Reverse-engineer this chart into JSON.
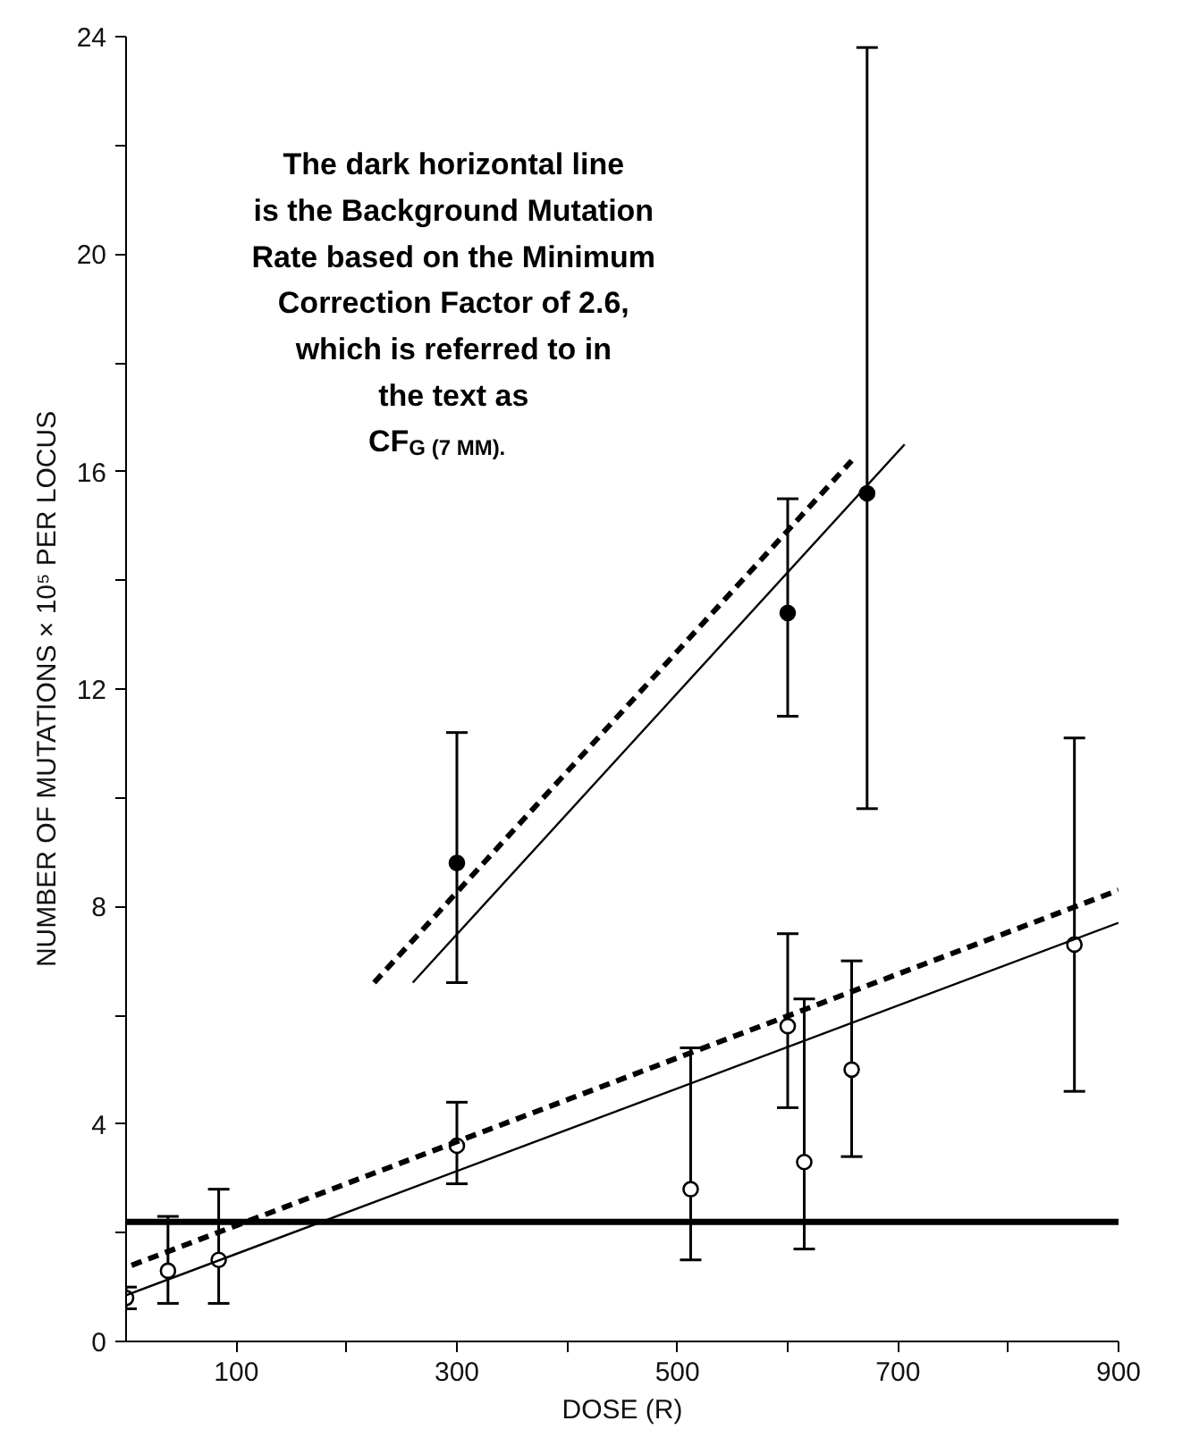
{
  "chart_data": {
    "type": "scatter",
    "xlabel": "DOSE (R)",
    "ylabel": "NUMBER OF MUTATIONS × 10⁵ PER LOCUS",
    "xlim": [
      0,
      900
    ],
    "ylim": [
      0,
      24
    ],
    "xticks": [
      100,
      {
        "value": 200,
        "label": null
      },
      300,
      {
        "value": 400,
        "label": null
      },
      500,
      {
        "value": 600,
        "label": null
      },
      700,
      {
        "value": 800,
        "label": null
      },
      900
    ],
    "yticks": [
      0,
      {
        "value": 2,
        "label": null
      },
      4,
      {
        "value": 6,
        "label": null
      },
      8,
      {
        "value": 10,
        "label": null
      },
      12,
      {
        "value": 14,
        "label": null
      },
      16,
      {
        "value": 18,
        "label": null
      },
      20,
      {
        "value": 22,
        "label": null
      },
      24
    ],
    "grid": false,
    "series": [
      {
        "marker": "circle",
        "color": "#ffffff",
        "x": [
          0,
          38,
          84,
          300,
          512,
          600,
          615,
          658,
          860
        ],
        "values": [
          0.8,
          1.3,
          1.5,
          3.6,
          2.8,
          5.8,
          3.3,
          5.0,
          7.3
        ],
        "errors": [
          [
            0.6,
            1.0
          ],
          [
            0.7,
            2.3
          ],
          [
            0.7,
            2.8
          ],
          [
            2.9,
            4.4
          ],
          [
            1.5,
            5.4
          ],
          [
            4.3,
            7.5
          ],
          [
            1.7,
            6.3
          ],
          [
            3.4,
            7.0
          ],
          [
            4.6,
            11.1
          ]
        ]
      },
      {
        "marker": "circle",
        "color": "#000000",
        "x": [
          300,
          600,
          672
        ],
        "values": [
          8.8,
          13.4,
          15.6
        ],
        "errors": [
          [
            6.6,
            11.2
          ],
          [
            11.5,
            15.5
          ],
          [
            9.8,
            23.8
          ]
        ]
      },
      {
        "type": "line",
        "color": "#000000",
        "line_style": "solid",
        "x": [
          0,
          900
        ],
        "values": [
          0.85,
          7.7
        ]
      },
      {
        "type": "line",
        "color": "#000000",
        "line_style": "dashed",
        "x": [
          5,
          900
        ],
        "values": [
          1.4,
          8.3
        ]
      },
      {
        "type": "line",
        "color": "#000000",
        "line_style": "solid",
        "x": [
          260,
          706
        ],
        "values": [
          6.6,
          16.5
        ]
      },
      {
        "type": "line",
        "color": "#000000",
        "line_style": "dashed",
        "x": [
          225,
          658
        ],
        "values": [
          6.6,
          16.2
        ]
      }
    ],
    "ref_lines": [
      {
        "axis": "y",
        "value": 2.2,
        "color": "#000000"
      }
    ],
    "annotations": [
      "The dark horizontal line is the Background Mutation Rate based on the Minimum Correction Factor of 2.6, which is referred to in the text as CF$_{G (7 MM)}$."
    ]
  }
}
